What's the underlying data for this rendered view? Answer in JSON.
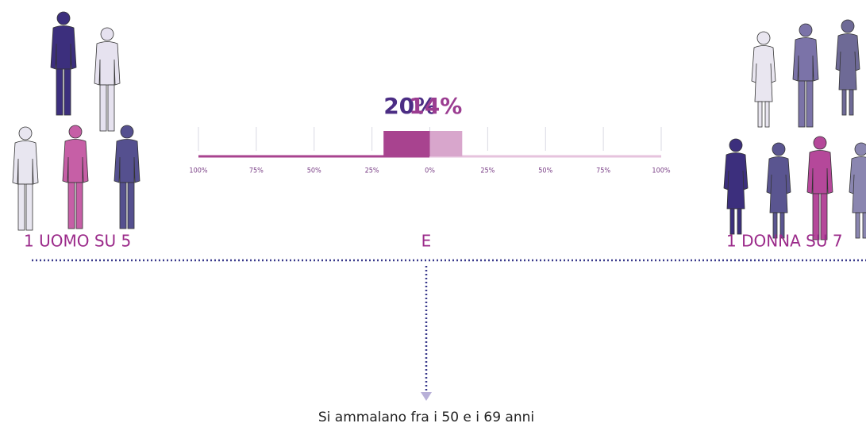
{
  "chart_data": {
    "type": "bar",
    "series": [
      {
        "color": "#a8438f",
        "label_color": "#4b2d84",
        "values": [
          -20
        ],
        "value_labels": [
          "20%"
        ]
      },
      {
        "color": "#d8a6cc",
        "label_color": "#9b3d91",
        "values": [
          14
        ],
        "value_labels": [
          "14%"
        ]
      }
    ],
    "xlim": [
      -100,
      100
    ],
    "xticks": [
      {
        "value": -100,
        "label": "100%"
      },
      {
        "value": -75,
        "label": "75%"
      },
      {
        "value": -50,
        "label": "50%"
      },
      {
        "value": -25,
        "label": "25%"
      },
      {
        "value": 0,
        "label": "0%"
      },
      {
        "value": 25,
        "label": "25%"
      },
      {
        "value": 50,
        "label": "50%"
      },
      {
        "value": 75,
        "label": "75%"
      },
      {
        "value": 100,
        "label": "100%"
      }
    ],
    "grid": true
  },
  "labels": {
    "men": "1 UOMO SU 5",
    "and": "E",
    "women": "1 DONNA SU 7",
    "caption": "Si ammalano fra i 50 e i 69 anni"
  }
}
